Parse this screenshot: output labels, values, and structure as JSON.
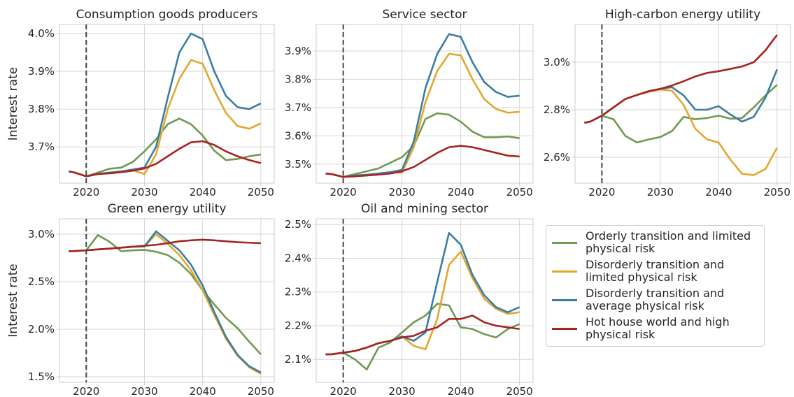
{
  "chart_data": [
    {
      "type": "line",
      "title": "Consumption goods producers",
      "ylabel": "Interest rate",
      "x": [
        2017,
        2018,
        2020,
        2022,
        2024,
        2026,
        2028,
        2030,
        2032,
        2034,
        2036,
        2038,
        2040,
        2042,
        2044,
        2046,
        2048,
        2050
      ],
      "xlim": [
        2015.4,
        2052.3
      ],
      "xticks": [
        2020,
        2030,
        2040,
        2050
      ],
      "ylim": [
        3.604,
        4.024
      ],
      "yticks": [
        {
          "value": 3.7,
          "label": "3.7%"
        },
        {
          "value": 3.8,
          "label": "3.8%"
        },
        {
          "value": 3.9,
          "label": "3.9%"
        },
        {
          "value": 4.0,
          "label": "4.0%"
        }
      ],
      "grid": true,
      "vline": 2020,
      "series": [
        {
          "name": "Orderly transition and limited physical risk",
          "color": "#6f9a52",
          "values": [
            3.635,
            3.632,
            3.622,
            3.632,
            3.642,
            3.645,
            3.66,
            3.688,
            3.72,
            3.76,
            3.775,
            3.76,
            3.73,
            3.69,
            3.665,
            3.668,
            3.675,
            3.68
          ]
        },
        {
          "name": "Disorderly transition and limited physical risk",
          "color": "#e3a72f",
          "values": [
            3.635,
            3.632,
            3.622,
            3.628,
            3.632,
            3.635,
            3.638,
            3.628,
            3.68,
            3.8,
            3.88,
            3.93,
            3.92,
            3.85,
            3.79,
            3.755,
            3.748,
            3.762
          ]
        },
        {
          "name": "Disorderly transition and average physical risk",
          "color": "#3b7ea1",
          "values": [
            3.635,
            3.632,
            3.622,
            3.628,
            3.632,
            3.635,
            3.64,
            3.645,
            3.7,
            3.83,
            3.95,
            4.0,
            3.985,
            3.9,
            3.835,
            3.805,
            3.8,
            3.815
          ]
        },
        {
          "name": "Hot house world and high physical risk",
          "color": "#a82323",
          "values": [
            3.635,
            3.632,
            3.622,
            3.628,
            3.63,
            3.633,
            3.637,
            3.643,
            3.655,
            3.675,
            3.695,
            3.712,
            3.715,
            3.705,
            3.688,
            3.675,
            3.665,
            3.657
          ]
        }
      ]
    },
    {
      "type": "line",
      "title": "Service sector",
      "x": [
        2017,
        2018,
        2020,
        2022,
        2024,
        2026,
        2028,
        2030,
        2032,
        2034,
        2036,
        2038,
        2040,
        2042,
        2044,
        2046,
        2048,
        2050
      ],
      "xlim": [
        2015.4,
        2052.3
      ],
      "xticks": [
        2020,
        2030,
        2040,
        2050
      ],
      "ylim": [
        3.433,
        3.994
      ],
      "yticks": [
        {
          "value": 3.5,
          "label": "3.5%"
        },
        {
          "value": 3.6,
          "label": "3.6%"
        },
        {
          "value": 3.7,
          "label": "3.7%"
        },
        {
          "value": 3.8,
          "label": "3.8%"
        },
        {
          "value": 3.9,
          "label": "3.9%"
        }
      ],
      "grid": true,
      "vline": 2020,
      "series": [
        {
          "name": "Orderly transition and limited physical risk",
          "color": "#6f9a52",
          "values": [
            3.467,
            3.465,
            3.455,
            3.465,
            3.475,
            3.485,
            3.505,
            3.525,
            3.565,
            3.66,
            3.68,
            3.675,
            3.65,
            3.615,
            3.595,
            3.595,
            3.598,
            3.592
          ]
        },
        {
          "name": "Disorderly transition and limited physical risk",
          "color": "#e3a72f",
          "values": [
            3.467,
            3.465,
            3.455,
            3.46,
            3.462,
            3.465,
            3.47,
            3.47,
            3.56,
            3.72,
            3.83,
            3.89,
            3.885,
            3.8,
            3.73,
            3.695,
            3.682,
            3.685
          ]
        },
        {
          "name": "Disorderly transition and average physical risk",
          "color": "#3b7ea1",
          "values": [
            3.467,
            3.465,
            3.455,
            3.46,
            3.463,
            3.467,
            3.472,
            3.48,
            3.58,
            3.77,
            3.89,
            3.96,
            3.95,
            3.86,
            3.79,
            3.755,
            3.738,
            3.742
          ]
        },
        {
          "name": "Hot house world and high physical risk",
          "color": "#a82323",
          "values": [
            3.467,
            3.465,
            3.455,
            3.457,
            3.46,
            3.463,
            3.467,
            3.475,
            3.49,
            3.515,
            3.54,
            3.56,
            3.565,
            3.56,
            3.55,
            3.54,
            3.53,
            3.527
          ]
        }
      ]
    },
    {
      "type": "line",
      "title": "High-carbon energy utility",
      "x": [
        2017,
        2018,
        2020,
        2022,
        2024,
        2026,
        2028,
        2030,
        2032,
        2034,
        2036,
        2038,
        2040,
        2042,
        2044,
        2046,
        2048,
        2050
      ],
      "xlim": [
        2015.4,
        2052.3
      ],
      "xticks": [
        2020,
        2030,
        2040,
        2050
      ],
      "ylim": [
        2.491,
        3.159
      ],
      "yticks": [
        {
          "value": 2.6,
          "label": "2.6%"
        },
        {
          "value": 2.8,
          "label": "2.8%"
        },
        {
          "value": 3.0,
          "label": "3.0%"
        }
      ],
      "grid": true,
      "vline": 2020,
      "series": [
        {
          "name": "Orderly transition and limited physical risk",
          "color": "#6f9a52",
          "values": [
            2.745,
            2.75,
            2.775,
            2.76,
            2.69,
            2.662,
            2.675,
            2.685,
            2.71,
            2.77,
            2.76,
            2.765,
            2.775,
            2.762,
            2.765,
            2.81,
            2.86,
            2.905
          ]
        },
        {
          "name": "Disorderly transition and limited physical risk",
          "color": "#e3a72f",
          "values": [
            2.745,
            2.75,
            2.775,
            2.81,
            2.845,
            2.862,
            2.875,
            2.885,
            2.88,
            2.82,
            2.72,
            2.675,
            2.662,
            2.59,
            2.53,
            2.525,
            2.55,
            2.64
          ]
        },
        {
          "name": "Disorderly transition and average physical risk",
          "color": "#3b7ea1",
          "values": [
            2.745,
            2.75,
            2.775,
            2.81,
            2.845,
            2.862,
            2.878,
            2.888,
            2.895,
            2.86,
            2.8,
            2.8,
            2.815,
            2.78,
            2.75,
            2.77,
            2.85,
            2.97
          ]
        },
        {
          "name": "Hot house world and high physical risk",
          "color": "#a82323",
          "values": [
            2.745,
            2.75,
            2.775,
            2.81,
            2.845,
            2.862,
            2.878,
            2.888,
            2.902,
            2.92,
            2.94,
            2.955,
            2.962,
            2.972,
            2.982,
            3.0,
            3.05,
            3.115
          ]
        }
      ]
    },
    {
      "type": "line",
      "title": "Green energy utility",
      "ylabel": "Interest rate",
      "x": [
        2017,
        2018,
        2020,
        2022,
        2024,
        2026,
        2028,
        2030,
        2032,
        2034,
        2036,
        2038,
        2040,
        2042,
        2044,
        2046,
        2048,
        2050
      ],
      "xlim": [
        2015.4,
        2052.3
      ],
      "xticks": [
        2020,
        2030,
        2040,
        2050
      ],
      "ylim": [
        1.441,
        3.162
      ],
      "yticks": [
        {
          "value": 1.5,
          "label": "1.5%"
        },
        {
          "value": 2.0,
          "label": "2.0%"
        },
        {
          "value": 2.5,
          "label": "2.5%"
        },
        {
          "value": 3.0,
          "label": "3.0%"
        }
      ],
      "grid": true,
      "vline": 2020,
      "series": [
        {
          "name": "Orderly transition and limited physical risk",
          "color": "#6f9a52",
          "values": [
            2.82,
            2.822,
            2.83,
            2.99,
            2.92,
            2.82,
            2.83,
            2.835,
            2.815,
            2.78,
            2.7,
            2.58,
            2.41,
            2.26,
            2.12,
            2.01,
            1.87,
            1.735
          ]
        },
        {
          "name": "Disorderly transition and limited physical risk",
          "color": "#e3a72f",
          "values": [
            2.82,
            2.822,
            2.83,
            2.84,
            2.848,
            2.858,
            2.868,
            2.87,
            3.0,
            2.9,
            2.78,
            2.62,
            2.41,
            2.15,
            1.9,
            1.72,
            1.6,
            1.53
          ]
        },
        {
          "name": "Disorderly transition and average physical risk",
          "color": "#3b7ea1",
          "values": [
            2.82,
            2.822,
            2.83,
            2.84,
            2.848,
            2.858,
            2.868,
            2.87,
            3.03,
            2.93,
            2.83,
            2.68,
            2.46,
            2.18,
            1.92,
            1.73,
            1.61,
            1.545
          ]
        },
        {
          "name": "Hot house world and high physical risk",
          "color": "#a82323",
          "values": [
            2.82,
            2.822,
            2.83,
            2.84,
            2.848,
            2.858,
            2.868,
            2.878,
            2.888,
            2.905,
            2.925,
            2.935,
            2.942,
            2.935,
            2.925,
            2.915,
            2.91,
            2.905
          ]
        }
      ]
    },
    {
      "type": "line",
      "title": "Oil and mining sector",
      "x": [
        2017,
        2018,
        2020,
        2022,
        2024,
        2026,
        2028,
        2030,
        2032,
        2034,
        2036,
        2038,
        2040,
        2042,
        2044,
        2046,
        2048,
        2050
      ],
      "xlim": [
        2015.4,
        2052.3
      ],
      "xticks": [
        2020,
        2030,
        2040,
        2050
      ],
      "ylim": [
        2.032,
        2.517
      ],
      "yticks": [
        {
          "value": 2.1,
          "label": "2.1%"
        },
        {
          "value": 2.2,
          "label": "2.2%"
        },
        {
          "value": 2.3,
          "label": "2.3%"
        },
        {
          "value": 2.4,
          "label": "2.4%"
        },
        {
          "value": 2.5,
          "label": "2.5%"
        }
      ],
      "grid": true,
      "vline": 2020,
      "series": [
        {
          "name": "Orderly transition and limited physical risk",
          "color": "#6f9a52",
          "values": [
            2.115,
            2.115,
            2.12,
            2.1,
            2.07,
            2.135,
            2.15,
            2.18,
            2.21,
            2.23,
            2.265,
            2.26,
            2.195,
            2.19,
            2.175,
            2.165,
            2.19,
            2.205
          ]
        },
        {
          "name": "Disorderly transition and limited physical risk",
          "color": "#e3a72f",
          "values": [
            2.115,
            2.115,
            2.12,
            2.125,
            2.135,
            2.148,
            2.155,
            2.168,
            2.14,
            2.13,
            2.22,
            2.38,
            2.42,
            2.34,
            2.28,
            2.25,
            2.235,
            2.24
          ]
        },
        {
          "name": "Disorderly transition and average physical risk",
          "color": "#3b7ea1",
          "values": [
            2.115,
            2.115,
            2.12,
            2.125,
            2.135,
            2.148,
            2.155,
            2.168,
            2.155,
            2.18,
            2.33,
            2.475,
            2.44,
            2.35,
            2.29,
            2.255,
            2.24,
            2.255
          ]
        },
        {
          "name": "Hot house world and high physical risk",
          "color": "#a82323",
          "values": [
            2.115,
            2.115,
            2.12,
            2.125,
            2.135,
            2.148,
            2.155,
            2.165,
            2.17,
            2.185,
            2.195,
            2.22,
            2.22,
            2.23,
            2.21,
            2.2,
            2.195,
            2.19
          ]
        }
      ]
    }
  ]
}
